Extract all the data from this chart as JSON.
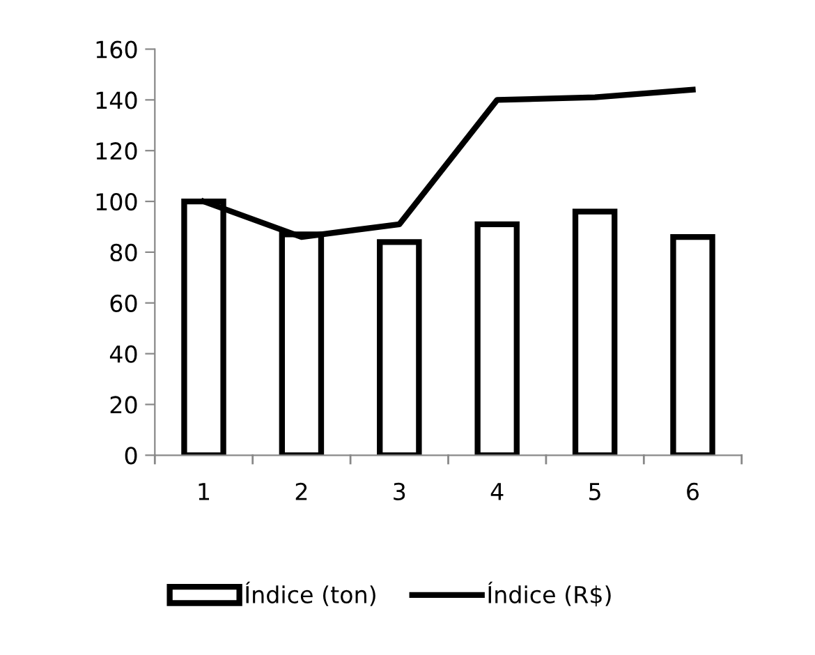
{
  "chart_data": {
    "type": "bar",
    "categories": [
      "1",
      "2",
      "3",
      "4",
      "5",
      "6"
    ],
    "series": [
      {
        "name": "Índice (ton)",
        "color": "#000000",
        "values": [
          100,
          87,
          84,
          91,
          96,
          86
        ]
      },
      {
        "name": "Índice (R$)",
        "type": "line",
        "color": "#000000",
        "values": [
          100,
          86,
          91,
          140,
          141,
          144
        ]
      }
    ],
    "ylim": [
      0,
      160
    ],
    "yticks": [
      0,
      20,
      40,
      60,
      80,
      100,
      120,
      140,
      160
    ],
    "grid": false,
    "legend": "bottom",
    "marker": "none",
    "line_style": "solid"
  }
}
